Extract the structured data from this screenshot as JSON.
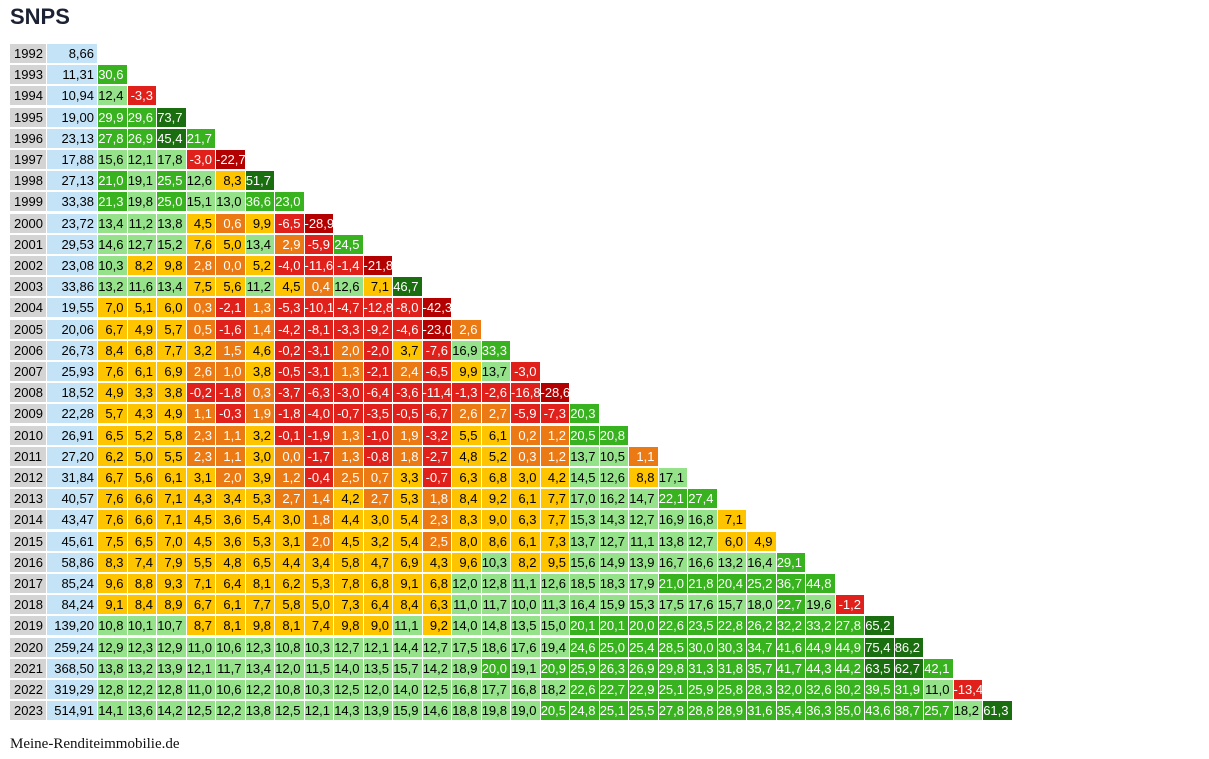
{
  "title": "SNPS",
  "footer": "Meine-Renditeimmobilie.de",
  "colors": {
    "year_bg": "#d4d4d4",
    "price_bg": "#c5e3f6",
    "dark_red": "#b30000",
    "red": "#e0201a",
    "orange": "#eb7a14",
    "yellow": "#ffc400",
    "light_green": "#96e28a",
    "green": "#38b31f",
    "dark_green": "#1b6e0f"
  },
  "chart_data": {
    "type": "table",
    "title": "SNPS",
    "years": [
      "1992",
      "1993",
      "1994",
      "1995",
      "1996",
      "1997",
      "1998",
      "1999",
      "2000",
      "2001",
      "2002",
      "2003",
      "2004",
      "2005",
      "2006",
      "2007",
      "2008",
      "2009",
      "2010",
      "2011",
      "2012",
      "2013",
      "2014",
      "2015",
      "2016",
      "2017",
      "2018",
      "2019",
      "2020",
      "2021",
      "2022",
      "2023"
    ],
    "prices": [
      "8,66",
      "11,31",
      "10,94",
      "19,00",
      "23,13",
      "17,88",
      "27,13",
      "33,38",
      "23,72",
      "29,53",
      "23,08",
      "33,86",
      "19,55",
      "20,06",
      "26,73",
      "25,93",
      "18,52",
      "22,28",
      "26,91",
      "27,20",
      "31,84",
      "40,57",
      "43,47",
      "45,61",
      "58,86",
      "85,24",
      "84,24",
      "139,20",
      "259,24",
      "368,50",
      "319,29",
      "514,91"
    ],
    "returns": [
      [],
      [
        "30,6"
      ],
      [
        "12,4",
        "-3,3"
      ],
      [
        "29,9",
        "29,6",
        "73,7"
      ],
      [
        "27,8",
        "26,9",
        "45,4",
        "21,7"
      ],
      [
        "15,6",
        "12,1",
        "17,8",
        "-3,0",
        "-22,7"
      ],
      [
        "21,0",
        "19,1",
        "25,5",
        "12,6",
        "8,3",
        "51,7"
      ],
      [
        "21,3",
        "19,8",
        "25,0",
        "15,1",
        "13,0",
        "36,6",
        "23,0"
      ],
      [
        "13,4",
        "11,2",
        "13,8",
        "4,5",
        "0,6",
        "9,9",
        "-6,5",
        "-28,9"
      ],
      [
        "14,6",
        "12,7",
        "15,2",
        "7,6",
        "5,0",
        "13,4",
        "2,9",
        "-5,9",
        "24,5"
      ],
      [
        "10,3",
        "8,2",
        "9,8",
        "2,8",
        "0,0",
        "5,2",
        "-4,0",
        "-11,6",
        "-1,4",
        "-21,8"
      ],
      [
        "13,2",
        "11,6",
        "13,4",
        "7,5",
        "5,6",
        "11,2",
        "4,5",
        "0,4",
        "12,6",
        "7,1",
        "46,7"
      ],
      [
        "7,0",
        "5,1",
        "6,0",
        "0,3",
        "-2,1",
        "1,3",
        "-5,3",
        "-10,1",
        "-4,7",
        "-12,8",
        "-8,0",
        "-42,3"
      ],
      [
        "6,7",
        "4,9",
        "5,7",
        "0,5",
        "-1,6",
        "1,4",
        "-4,2",
        "-8,1",
        "-3,3",
        "-9,2",
        "-4,6",
        "-23,0",
        "2,6"
      ],
      [
        "8,4",
        "6,8",
        "7,7",
        "3,2",
        "1,5",
        "4,6",
        "-0,2",
        "-3,1",
        "2,0",
        "-2,0",
        "3,7",
        "-7,6",
        "16,9",
        "33,3"
      ],
      [
        "7,6",
        "6,1",
        "6,9",
        "2,6",
        "1,0",
        "3,8",
        "-0,5",
        "-3,1",
        "1,3",
        "-2,1",
        "2,4",
        "-6,5",
        "9,9",
        "13,7",
        "-3,0"
      ],
      [
        "4,9",
        "3,3",
        "3,8",
        "-0,2",
        "-1,8",
        "0,3",
        "-3,7",
        "-6,3",
        "-3,0",
        "-6,4",
        "-3,6",
        "-11,4",
        "-1,3",
        "-2,6",
        "-16,8",
        "-28,6"
      ],
      [
        "5,7",
        "4,3",
        "4,9",
        "1,1",
        "-0,3",
        "1,9",
        "-1,8",
        "-4,0",
        "-0,7",
        "-3,5",
        "-0,5",
        "-6,7",
        "2,6",
        "2,7",
        "-5,9",
        "-7,3",
        "20,3"
      ],
      [
        "6,5",
        "5,2",
        "5,8",
        "2,3",
        "1,1",
        "3,2",
        "-0,1",
        "-1,9",
        "1,3",
        "-1,0",
        "1,9",
        "-3,2",
        "5,5",
        "6,1",
        "0,2",
        "1,2",
        "20,5",
        "20,8"
      ],
      [
        "6,2",
        "5,0",
        "5,5",
        "2,3",
        "1,1",
        "3,0",
        "0,0",
        "-1,7",
        "1,3",
        "-0,8",
        "1,8",
        "-2,7",
        "4,8",
        "5,2",
        "0,3",
        "1,2",
        "13,7",
        "10,5",
        "1,1"
      ],
      [
        "6,7",
        "5,6",
        "6,1",
        "3,1",
        "2,0",
        "3,9",
        "1,2",
        "-0,4",
        "2,5",
        "0,7",
        "3,3",
        "-0,7",
        "6,3",
        "6,8",
        "3,0",
        "4,2",
        "14,5",
        "12,6",
        "8,8",
        "17,1"
      ],
      [
        "7,6",
        "6,6",
        "7,1",
        "4,3",
        "3,4",
        "5,3",
        "2,7",
        "1,4",
        "4,2",
        "2,7",
        "5,3",
        "1,8",
        "8,4",
        "9,2",
        "6,1",
        "7,7",
        "17,0",
        "16,2",
        "14,7",
        "22,1",
        "27,4"
      ],
      [
        "7,6",
        "6,6",
        "7,1",
        "4,5",
        "3,6",
        "5,4",
        "3,0",
        "1,8",
        "4,4",
        "3,0",
        "5,4",
        "2,3",
        "8,3",
        "9,0",
        "6,3",
        "7,7",
        "15,3",
        "14,3",
        "12,7",
        "16,9",
        "16,8",
        "7,1"
      ],
      [
        "7,5",
        "6,5",
        "7,0",
        "4,5",
        "3,6",
        "5,3",
        "3,1",
        "2,0",
        "4,5",
        "3,2",
        "5,4",
        "2,5",
        "8,0",
        "8,6",
        "6,1",
        "7,3",
        "13,7",
        "12,7",
        "11,1",
        "13,8",
        "12,7",
        "6,0",
        "4,9"
      ],
      [
        "8,3",
        "7,4",
        "7,9",
        "5,5",
        "4,8",
        "6,5",
        "4,4",
        "3,4",
        "5,8",
        "4,7",
        "6,9",
        "4,3",
        "9,6",
        "10,3",
        "8,2",
        "9,5",
        "15,6",
        "14,9",
        "13,9",
        "16,7",
        "16,6",
        "13,2",
        "16,4",
        "29,1"
      ],
      [
        "9,6",
        "8,8",
        "9,3",
        "7,1",
        "6,4",
        "8,1",
        "6,2",
        "5,3",
        "7,8",
        "6,8",
        "9,1",
        "6,8",
        "12,0",
        "12,8",
        "11,1",
        "12,6",
        "18,5",
        "18,3",
        "17,9",
        "21,0",
        "21,8",
        "20,4",
        "25,2",
        "36,7",
        "44,8"
      ],
      [
        "9,1",
        "8,4",
        "8,9",
        "6,7",
        "6,1",
        "7,7",
        "5,8",
        "5,0",
        "7,3",
        "6,4",
        "8,4",
        "6,3",
        "11,0",
        "11,7",
        "10,0",
        "11,3",
        "16,4",
        "15,9",
        "15,3",
        "17,5",
        "17,6",
        "15,7",
        "18,0",
        "22,7",
        "19,6",
        "-1,2"
      ],
      [
        "10,8",
        "10,1",
        "10,7",
        "8,7",
        "8,1",
        "9,8",
        "8,1",
        "7,4",
        "9,8",
        "9,0",
        "11,1",
        "9,2",
        "14,0",
        "14,8",
        "13,5",
        "15,0",
        "20,1",
        "20,1",
        "20,0",
        "22,6",
        "23,5",
        "22,8",
        "26,2",
        "32,2",
        "33,2",
        "27,8",
        "65,2"
      ],
      [
        "12,9",
        "12,3",
        "12,9",
        "11,0",
        "10,6",
        "12,3",
        "10,8",
        "10,3",
        "12,7",
        "12,1",
        "14,4",
        "12,7",
        "17,5",
        "18,6",
        "17,6",
        "19,4",
        "24,6",
        "25,0",
        "25,4",
        "28,5",
        "30,0",
        "30,3",
        "34,7",
        "41,6",
        "44,9",
        "44,9",
        "75,4",
        "86,2"
      ],
      [
        "13,8",
        "13,2",
        "13,9",
        "12,1",
        "11,7",
        "13,4",
        "12,0",
        "11,5",
        "14,0",
        "13,5",
        "15,7",
        "14,2",
        "18,9",
        "20,0",
        "19,1",
        "20,9",
        "25,9",
        "26,3",
        "26,9",
        "29,8",
        "31,3",
        "31,8",
        "35,7",
        "41,7",
        "44,3",
        "44,2",
        "63,5",
        "62,7",
        "42,1"
      ],
      [
        "12,8",
        "12,2",
        "12,8",
        "11,0",
        "10,6",
        "12,2",
        "10,8",
        "10,3",
        "12,5",
        "12,0",
        "14,0",
        "12,5",
        "16,8",
        "17,7",
        "16,8",
        "18,2",
        "22,6",
        "22,7",
        "22,9",
        "25,1",
        "25,9",
        "25,8",
        "28,3",
        "32,0",
        "32,6",
        "30,2",
        "39,5",
        "31,9",
        "11,0",
        "-13,4"
      ],
      [
        "14,1",
        "13,6",
        "14,2",
        "12,5",
        "12,2",
        "13,8",
        "12,5",
        "12,1",
        "14,3",
        "13,9",
        "15,9",
        "14,6",
        "18,8",
        "19,8",
        "19,0",
        "20,5",
        "24,8",
        "25,1",
        "25,5",
        "27,8",
        "28,8",
        "28,9",
        "31,6",
        "35,4",
        "36,3",
        "35,0",
        "43,6",
        "38,7",
        "25,7",
        "18,2",
        "61,3"
      ]
    ]
  }
}
